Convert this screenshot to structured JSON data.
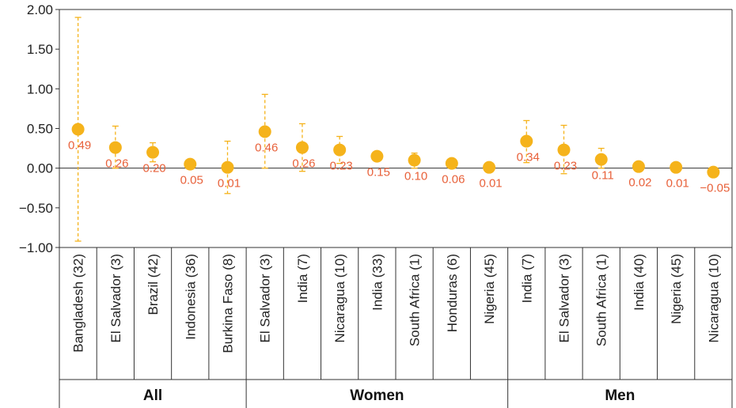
{
  "chart_data": {
    "type": "scatter",
    "title": "",
    "xlabel": "",
    "ylabel": "",
    "ylim": [
      -1.0,
      2.0
    ],
    "yticks": [
      "2.00",
      "1.50",
      "1.00",
      "0.50",
      "0.00",
      "−0.50",
      "−1.00"
    ],
    "grid": false,
    "colors": {
      "point": "#f5b31b",
      "error_bar": "#f5b31b",
      "label": "#e8613a",
      "axis": "#333333"
    },
    "groups": [
      {
        "name": "All",
        "points": [
          {
            "category": "Bangladesh (32)",
            "value": 0.49,
            "label": "0.49",
            "lower": -0.92,
            "upper": 1.9
          },
          {
            "category": "El Salvador (3)",
            "value": 0.26,
            "label": "0.26",
            "lower": 0.0,
            "upper": 0.53
          },
          {
            "category": "Brazil (42)",
            "value": 0.2,
            "label": "0.20",
            "lower": 0.08,
            "upper": 0.32
          },
          {
            "category": "Indonesia (36)",
            "value": 0.05,
            "label": "0.05",
            "lower": null,
            "upper": null
          },
          {
            "category": "Burkina Faso (8)",
            "value": 0.01,
            "label": "0.01",
            "lower": -0.32,
            "upper": 0.34
          }
        ]
      },
      {
        "name": "Women",
        "points": [
          {
            "category": "El Salvador (3)",
            "value": 0.46,
            "label": "0.46",
            "lower": 0.0,
            "upper": 0.93
          },
          {
            "category": "India (7)",
            "value": 0.26,
            "label": "0.26",
            "lower": -0.04,
            "upper": 0.56
          },
          {
            "category": "Nicaragua (10)",
            "value": 0.23,
            "label": "0.23",
            "lower": 0.06,
            "upper": 0.4
          },
          {
            "category": "India (33)",
            "value": 0.15,
            "label": "0.15",
            "lower": null,
            "upper": null
          },
          {
            "category": "South Africa (1)",
            "value": 0.1,
            "label": "0.10",
            "lower": 0.0,
            "upper": 0.19
          },
          {
            "category": "Honduras (6)",
            "value": 0.06,
            "label": "0.06",
            "lower": null,
            "upper": null
          },
          {
            "category": "Nigeria (45)",
            "value": 0.01,
            "label": "0.01",
            "lower": null,
            "upper": null
          }
        ]
      },
      {
        "name": "Men",
        "points": [
          {
            "category": "India (7)",
            "value": 0.34,
            "label": "0.34",
            "lower": 0.07,
            "upper": 0.6
          },
          {
            "category": "El Salvador (3)",
            "value": 0.23,
            "label": "0.23",
            "lower": -0.07,
            "upper": 0.54
          },
          {
            "category": "South Africa (1)",
            "value": 0.11,
            "label": "0.11",
            "lower": 0.0,
            "upper": 0.25
          },
          {
            "category": "India (40)",
            "value": 0.02,
            "label": "0.02",
            "lower": null,
            "upper": null
          },
          {
            "category": "Nigeria (45)",
            "value": 0.01,
            "label": "0.01",
            "lower": null,
            "upper": null
          },
          {
            "category": "Nicaragua (10)",
            "value": -0.05,
            "label": "−0.05",
            "lower": null,
            "upper": null
          }
        ]
      }
    ]
  }
}
